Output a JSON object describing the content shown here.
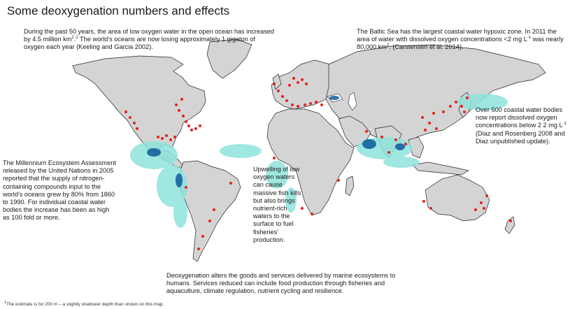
{
  "title": "Some deoxygenation numbers and effects",
  "notes": {
    "open_ocean": {
      "pre": "During the past 50 years, the area of low oxygen water in the open ocean has increased by 4.5 million km",
      "sup1": "2",
      "mid": ".",
      "sup2": "1",
      "post": " The world's oceans are now losing approximately 1 gigaton of oxygen each year (Keeling and Garcia 2002)."
    },
    "baltic": {
      "pre": "The Baltic Sea has the largest coastal water hypoxic zone. In 2011 the area of water with dissolved oxygen concentrations <2 mg L",
      "sup1": "-1",
      "mid": " was nearly 80,000 km",
      "sup2": "2",
      "post": ". (Carstensen et al. 2014)."
    },
    "coastal": {
      "pre": "Over 500 coastal water bodies now report dissolved oxygen concentrations below 2 2 mg L",
      "sup1": "-1",
      "post": " (Diaz and Rosenberg 2008 and Diaz unpublished update)."
    },
    "millennium": "The Millennium Ecosystem Assessment released by the United Nations in 2005 reported that the supply of nitrogen-containing compounds input to the world's oceans grew by 80% from 1860 to 1990. For individual coastal water bodies the increase has been as high as 100 fold or more.",
    "upwelling": "Upwelling of low oxygen waters can cause massive fish kills but also brings nutrient-rich waters to the surface to fuel fisheries' production.",
    "services": "Deoxygenation alters the goods and services delivered by marine ecosystems to humans. Services reduced can include food production through fisheries and aquaculture, climate regulation, nutrient cycling and resilience."
  },
  "footnote": {
    "sup": "1",
    "text": "The estimate is for 200 m – a slightly shallower depth than shown on this map."
  },
  "colors": {
    "land": "#d4d4d4",
    "coast_outline": "#222222",
    "coastal_hypoxia_dots": "#e8201a",
    "low_oxygen_light": "#8fe3dc",
    "low_oxygen_dark": "#0d5a9e"
  }
}
